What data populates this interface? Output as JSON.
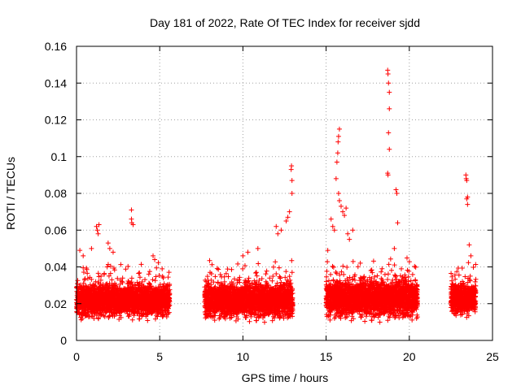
{
  "chart_data": {
    "type": "scatter",
    "title": "Day 181 of 2022, Rate Of TEC Index for receiver sjdd",
    "xlabel": "GPS time / hours",
    "ylabel": "ROTI / TECUs",
    "xlim": [
      0,
      25
    ],
    "ylim": [
      0,
      0.16
    ],
    "xticks": [
      0,
      5,
      10,
      15,
      20,
      25
    ],
    "yticks": [
      0,
      0.02,
      0.04,
      0.06,
      0.08,
      0.1,
      0.12,
      0.14,
      0.16
    ],
    "xtick_labels": [
      "0",
      "5",
      "10",
      "15",
      "20",
      "25"
    ],
    "ytick_labels": [
      "0",
      "0.02",
      "0.04",
      "0.06",
      "0.08",
      "0.1",
      "0.12",
      "0.14",
      "0.16"
    ],
    "grid": true,
    "marker": "+",
    "color": "#ff0000",
    "series": [
      {
        "name": "ROTI",
        "segments": [
          {
            "x_start": 0.0,
            "x_end": 5.6,
            "base": 0.022,
            "spread": 0.012
          },
          {
            "x_start": 7.7,
            "x_end": 13.0,
            "base": 0.022,
            "spread": 0.013
          },
          {
            "x_start": 15.0,
            "x_end": 20.5,
            "base": 0.023,
            "spread": 0.014
          },
          {
            "x_start": 22.5,
            "x_end": 24.0,
            "base": 0.023,
            "spread": 0.012
          }
        ],
        "outliers": [
          [
            0.2,
            0.049
          ],
          [
            0.4,
            0.046
          ],
          [
            0.9,
            0.05
          ],
          [
            1.2,
            0.062
          ],
          [
            1.25,
            0.06
          ],
          [
            1.3,
            0.058
          ],
          [
            1.35,
            0.063
          ],
          [
            1.9,
            0.053
          ],
          [
            2.0,
            0.05
          ],
          [
            2.2,
            0.048
          ],
          [
            3.3,
            0.071
          ],
          [
            3.3,
            0.066
          ],
          [
            3.32,
            0.064
          ],
          [
            3.4,
            0.063
          ],
          [
            4.6,
            0.046
          ],
          [
            4.7,
            0.044
          ],
          [
            10.0,
            0.046
          ],
          [
            10.3,
            0.048
          ],
          [
            10.9,
            0.05
          ],
          [
            12.0,
            0.062
          ],
          [
            12.1,
            0.058
          ],
          [
            12.3,
            0.06
          ],
          [
            12.6,
            0.065
          ],
          [
            12.7,
            0.067
          ],
          [
            12.8,
            0.07
          ],
          [
            12.9,
            0.093
          ],
          [
            12.92,
            0.095
          ],
          [
            12.95,
            0.087
          ],
          [
            12.95,
            0.08
          ],
          [
            15.1,
            0.049
          ],
          [
            15.3,
            0.066
          ],
          [
            15.4,
            0.062
          ],
          [
            15.5,
            0.06
          ],
          [
            15.6,
            0.088
          ],
          [
            15.65,
            0.097
          ],
          [
            15.7,
            0.102
          ],
          [
            15.72,
            0.108
          ],
          [
            15.75,
            0.111
          ],
          [
            15.8,
            0.115
          ],
          [
            15.75,
            0.08
          ],
          [
            15.8,
            0.076
          ],
          [
            15.9,
            0.073
          ],
          [
            16.0,
            0.07
          ],
          [
            16.1,
            0.068
          ],
          [
            16.2,
            0.072
          ],
          [
            16.3,
            0.058
          ],
          [
            16.4,
            0.055
          ],
          [
            16.6,
            0.06
          ],
          [
            18.7,
            0.147
          ],
          [
            18.72,
            0.145
          ],
          [
            18.75,
            0.14
          ],
          [
            18.8,
            0.135
          ],
          [
            18.8,
            0.126
          ],
          [
            18.75,
            0.113
          ],
          [
            18.8,
            0.104
          ],
          [
            18.7,
            0.091
          ],
          [
            18.72,
            0.09
          ],
          [
            19.2,
            0.082
          ],
          [
            19.25,
            0.08
          ],
          [
            19.3,
            0.064
          ],
          [
            19.1,
            0.05
          ],
          [
            23.4,
            0.09
          ],
          [
            23.42,
            0.088
          ],
          [
            23.45,
            0.087
          ],
          [
            23.5,
            0.078
          ],
          [
            23.45,
            0.077
          ],
          [
            23.5,
            0.074
          ],
          [
            23.6,
            0.052
          ],
          [
            23.7,
            0.046
          ]
        ]
      }
    ]
  }
}
